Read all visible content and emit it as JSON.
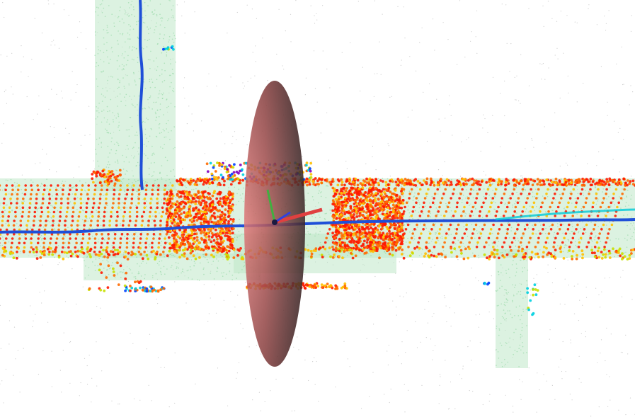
{
  "scene": {
    "type": "lidar-point-cloud-map",
    "background_color": "#ffffff",
    "map_points_color": "#bfe8c8",
    "sparse_points_color": "#b8b8b8",
    "scan_colormap": [
      "#ff1a00",
      "#ff6a00",
      "#ffc000",
      "#c8e000",
      "#00d0e0",
      "#0040ff",
      "#8000c0"
    ],
    "trajectory_color": "#1f4fd8",
    "trajectory_highlight_color": "#00c8d8",
    "covariance_ellipsoid_color": "#7a3a3a",
    "axis_colors": {
      "x": "#e04040",
      "y": "#40b040",
      "z": "#3040e0"
    }
  }
}
